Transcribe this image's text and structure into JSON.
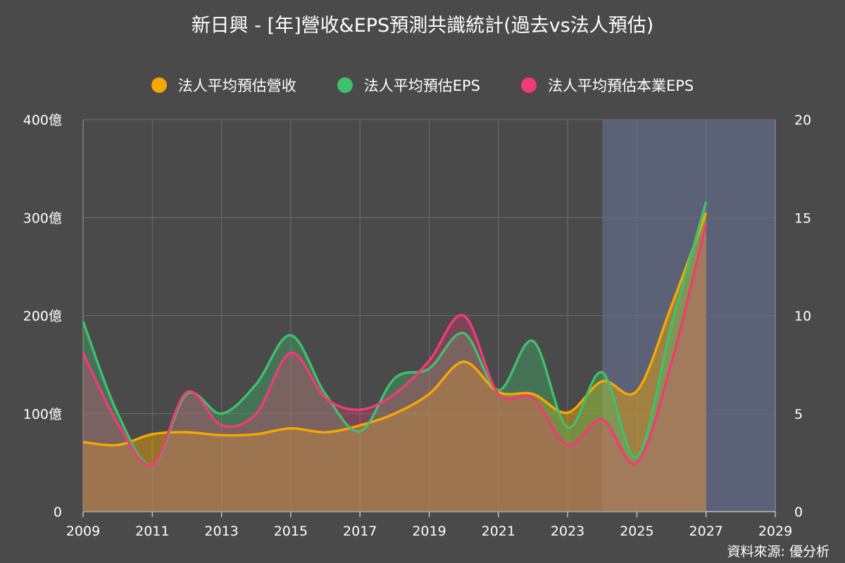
{
  "title": "新日興 - [年]營收&EPS預測共識統計(過去vs法人預估)",
  "source": "資料來源: 優分析",
  "legend": [
    {
      "label": "法人平均預估營收",
      "color": "#f5a800"
    },
    {
      "label": "法人平均預估EPS",
      "color": "#3fc06c"
    },
    {
      "label": "法人平均預估本業EPS",
      "color": "#f23a78"
    }
  ],
  "chart_data": {
    "type": "area",
    "x": [
      2009,
      2010,
      2011,
      2012,
      2013,
      2014,
      2015,
      2016,
      2017,
      2018,
      2019,
      2020,
      2021,
      2022,
      2023,
      2024,
      2025,
      2026,
      2027
    ],
    "xlim": [
      2009,
      2029
    ],
    "x_ticks": [
      "2009",
      "2011",
      "2013",
      "2015",
      "2017",
      "2019",
      "2021",
      "2023",
      "2025",
      "2027",
      "2029"
    ],
    "y_left": {
      "ticks": [
        "0",
        "100億",
        "200億",
        "300億",
        "400億"
      ],
      "ylim": [
        0,
        400
      ],
      "unit": "億"
    },
    "y_right": {
      "ticks": [
        "0",
        "5",
        "10",
        "15",
        "20"
      ],
      "ylim": [
        0,
        20
      ]
    },
    "forecast_region": {
      "from": 2024,
      "to": 2029,
      "color": "#5b6278"
    },
    "grid": true,
    "legend_position": "top",
    "series": [
      {
        "name": "法人平均預估營收",
        "axis": "left",
        "color": "#f5a800",
        "values": [
          71,
          68,
          79,
          81,
          78,
          79,
          85,
          81,
          88,
          100,
          120,
          153,
          122,
          120,
          101,
          133,
          123,
          210,
          305
        ]
      },
      {
        "name": "法人平均預估EPS",
        "axis": "right",
        "color": "#3fc06c",
        "values": [
          9.7,
          5.0,
          2.4,
          6.0,
          5.0,
          6.5,
          9.0,
          6.0,
          4.1,
          6.8,
          7.3,
          9.1,
          6.2,
          8.7,
          4.3,
          7.1,
          2.8,
          9.5,
          15.8
        ]
      },
      {
        "name": "法人平均預估本業EPS",
        "axis": "right",
        "color": "#f23a78",
        "values": [
          8.1,
          4.5,
          2.4,
          6.1,
          4.4,
          5.0,
          8.1,
          5.8,
          5.2,
          6.0,
          7.7,
          10.0,
          6.0,
          5.8,
          3.4,
          4.7,
          2.5,
          7.6,
          14.7
        ]
      }
    ]
  }
}
